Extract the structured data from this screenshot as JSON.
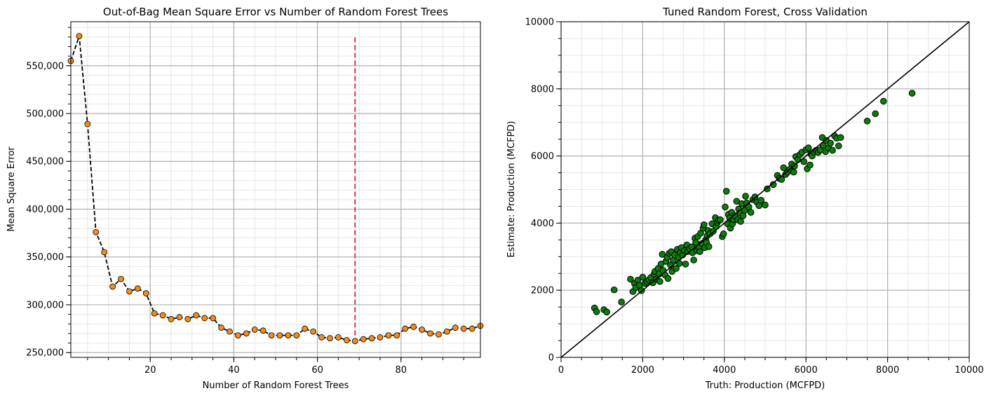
{
  "chart_data": [
    {
      "type": "scatter",
      "title": "Out-of-Bag Mean Square Error vs Number of Random Forest Trees",
      "xlabel": "Number of Random Forest Trees",
      "ylabel": "Mean Square Error",
      "xlim": [
        1,
        99
      ],
      "ylim": [
        245000,
        596000
      ],
      "grid": true,
      "x_ticks": [
        20,
        40,
        60,
        80
      ],
      "x_tick_labels": [
        "20",
        "40",
        "60",
        "80"
      ],
      "y_ticks": [
        250000,
        300000,
        350000,
        400000,
        450000,
        500000,
        550000
      ],
      "y_tick_labels": [
        "250,000",
        "300,000",
        "350,000",
        "400,000",
        "450,000",
        "500,000",
        "550,000"
      ],
      "series": [
        {
          "marker_color": "#f28c1c",
          "line_style": "dashed",
          "line_color": "#000000",
          "x": [
            1,
            3,
            5,
            7,
            9,
            11,
            13,
            15,
            17,
            19,
            21,
            23,
            25,
            27,
            29,
            31,
            33,
            35,
            37,
            39,
            41,
            43,
            45,
            47,
            49,
            51,
            53,
            55,
            57,
            59,
            61,
            63,
            65,
            67,
            69,
            71,
            73,
            75,
            77,
            79,
            81,
            83,
            85,
            87,
            89,
            91,
            93,
            95,
            97,
            99
          ],
          "y": [
            555000,
            581000,
            489000,
            376000,
            355000,
            319000,
            327000,
            314000,
            317000,
            312000,
            291000,
            289000,
            285000,
            287000,
            285000,
            289000,
            286000,
            286000,
            276000,
            272000,
            268000,
            270000,
            274000,
            273000,
            268000,
            268000,
            268000,
            268000,
            275000,
            272000,
            266000,
            265000,
            266000,
            263000,
            262000,
            264000,
            265000,
            266000,
            268000,
            268000,
            275000,
            277000,
            274000,
            270000,
            269000,
            272000,
            276000,
            275000,
            275000,
            278000
          ]
        }
      ],
      "reference_line": {
        "x": 69,
        "y_range": [
          260000,
          582000
        ],
        "color": "#e02020",
        "style": "dashed"
      }
    },
    {
      "type": "scatter",
      "title": "Tuned Random Forest, Cross Validation",
      "xlabel": "Truth: Production (MCFPD)",
      "ylabel": "Estimate: Production (MCFPD)",
      "xlim": [
        0,
        10000
      ],
      "ylim": [
        0,
        10000
      ],
      "grid": true,
      "x_ticks": [
        0,
        2000,
        4000,
        6000,
        8000,
        10000
      ],
      "x_tick_labels": [
        "0",
        "2000",
        "4000",
        "6000",
        "8000",
        "10000"
      ],
      "y_ticks": [
        0,
        2000,
        4000,
        6000,
        8000,
        10000
      ],
      "y_tick_labels": [
        "0",
        "2000",
        "4000",
        "6000",
        "8000",
        "10000"
      ],
      "marker_color": "#0c7d0c",
      "reference_line": {
        "x": [
          0,
          10000
        ],
        "y": [
          0,
          10000
        ],
        "color": "#000000",
        "style": "solid"
      },
      "points": [
        [
          820,
          1470
        ],
        [
          870,
          1360
        ],
        [
          1050,
          1420
        ],
        [
          1120,
          1350
        ],
        [
          1300,
          2010
        ],
        [
          1480,
          1650
        ],
        [
          1700,
          2330
        ],
        [
          1760,
          1960
        ],
        [
          1800,
          2200
        ],
        [
          1830,
          2080
        ],
        [
          1880,
          2300
        ],
        [
          1920,
          2150
        ],
        [
          1970,
          1990
        ],
        [
          2000,
          2390
        ],
        [
          2050,
          2200
        ],
        [
          2100,
          2250
        ],
        [
          2150,
          2310
        ],
        [
          2200,
          2380
        ],
        [
          2250,
          2220
        ],
        [
          2280,
          2480
        ],
        [
          2300,
          2560
        ],
        [
          2340,
          2330
        ],
        [
          2380,
          2650
        ],
        [
          2400,
          2480
        ],
        [
          2420,
          2260
        ],
        [
          2450,
          2780
        ],
        [
          2480,
          3070
        ],
        [
          2500,
          2590
        ],
        [
          2550,
          2450
        ],
        [
          2570,
          2860
        ],
        [
          2600,
          2980
        ],
        [
          2620,
          2350
        ],
        [
          2650,
          3100
        ],
        [
          2680,
          2750
        ],
        [
          2700,
          3150
        ],
        [
          2720,
          2560
        ],
        [
          2750,
          2900
        ],
        [
          2780,
          3050
        ],
        [
          2820,
          2650
        ],
        [
          2850,
          3220
        ],
        [
          2880,
          2980
        ],
        [
          2900,
          2800
        ],
        [
          2920,
          3120
        ],
        [
          2950,
          3270
        ],
        [
          2980,
          3050
        ],
        [
          3020,
          3180
        ],
        [
          3050,
          2780
        ],
        [
          3080,
          3350
        ],
        [
          3100,
          3150
        ],
        [
          3150,
          3230
        ],
        [
          3200,
          3290
        ],
        [
          3220,
          3120
        ],
        [
          3250,
          2900
        ],
        [
          3280,
          3550
        ],
        [
          3300,
          3420
        ],
        [
          3330,
          3180
        ],
        [
          3350,
          3600
        ],
        [
          3380,
          3280
        ],
        [
          3400,
          3150
        ],
        [
          3420,
          3700
        ],
        [
          3450,
          3390
        ],
        [
          3480,
          3850
        ],
        [
          3500,
          3950
        ],
        [
          3520,
          3270
        ],
        [
          3540,
          3500
        ],
        [
          3560,
          3420
        ],
        [
          3580,
          3620
        ],
        [
          3600,
          3780
        ],
        [
          3620,
          3300
        ],
        [
          3650,
          3680
        ],
        [
          3700,
          3980
        ],
        [
          3730,
          3760
        ],
        [
          3780,
          4160
        ],
        [
          3800,
          3900
        ],
        [
          3830,
          4020
        ],
        [
          3860,
          4080
        ],
        [
          3900,
          4100
        ],
        [
          3950,
          3600
        ],
        [
          3980,
          3680
        ],
        [
          4020,
          4480
        ],
        [
          4050,
          4950
        ],
        [
          4080,
          3980
        ],
        [
          4100,
          4260
        ],
        [
          4130,
          4150
        ],
        [
          4150,
          3850
        ],
        [
          4180,
          4320
        ],
        [
          4200,
          3980
        ],
        [
          4230,
          4100
        ],
        [
          4260,
          4220
        ],
        [
          4300,
          4650
        ],
        [
          4330,
          4100
        ],
        [
          4350,
          4420
        ],
        [
          4380,
          4300
        ],
        [
          4400,
          4050
        ],
        [
          4430,
          4580
        ],
        [
          4460,
          4220
        ],
        [
          4500,
          4380
        ],
        [
          4520,
          4800
        ],
        [
          4550,
          4600
        ],
        [
          4600,
          4480
        ],
        [
          4650,
          4320
        ],
        [
          4700,
          4700
        ],
        [
          4750,
          4780
        ],
        [
          4800,
          4620
        ],
        [
          4850,
          4520
        ],
        [
          4900,
          4680
        ],
        [
          5000,
          4540
        ],
        [
          5050,
          5020
        ],
        [
          5200,
          5150
        ],
        [
          5300,
          5420
        ],
        [
          5350,
          5330
        ],
        [
          5400,
          5300
        ],
        [
          5450,
          5650
        ],
        [
          5500,
          5450
        ],
        [
          5550,
          5520
        ],
        [
          5600,
          5600
        ],
        [
          5650,
          5760
        ],
        [
          5700,
          5520
        ],
        [
          5720,
          5700
        ],
        [
          5750,
          5980
        ],
        [
          5800,
          5890
        ],
        [
          5850,
          6040
        ],
        [
          5900,
          6110
        ],
        [
          5950,
          5830
        ],
        [
          6000,
          6190
        ],
        [
          6030,
          5620
        ],
        [
          6060,
          6240
        ],
        [
          6100,
          5730
        ],
        [
          6120,
          6060
        ],
        [
          6150,
          6000
        ],
        [
          6200,
          6120
        ],
        [
          6250,
          6170
        ],
        [
          6300,
          6110
        ],
        [
          6350,
          6180
        ],
        [
          6400,
          6550
        ],
        [
          6420,
          6320
        ],
        [
          6480,
          6130
        ],
        [
          6500,
          6460
        ],
        [
          6550,
          6240
        ],
        [
          6600,
          6380
        ],
        [
          6650,
          6170
        ],
        [
          6700,
          6600
        ],
        [
          6750,
          6530
        ],
        [
          6800,
          6300
        ],
        [
          6850,
          6550
        ],
        [
          7500,
          7040
        ],
        [
          7700,
          7260
        ],
        [
          7900,
          7630
        ],
        [
          8600,
          7870
        ]
      ]
    }
  ]
}
